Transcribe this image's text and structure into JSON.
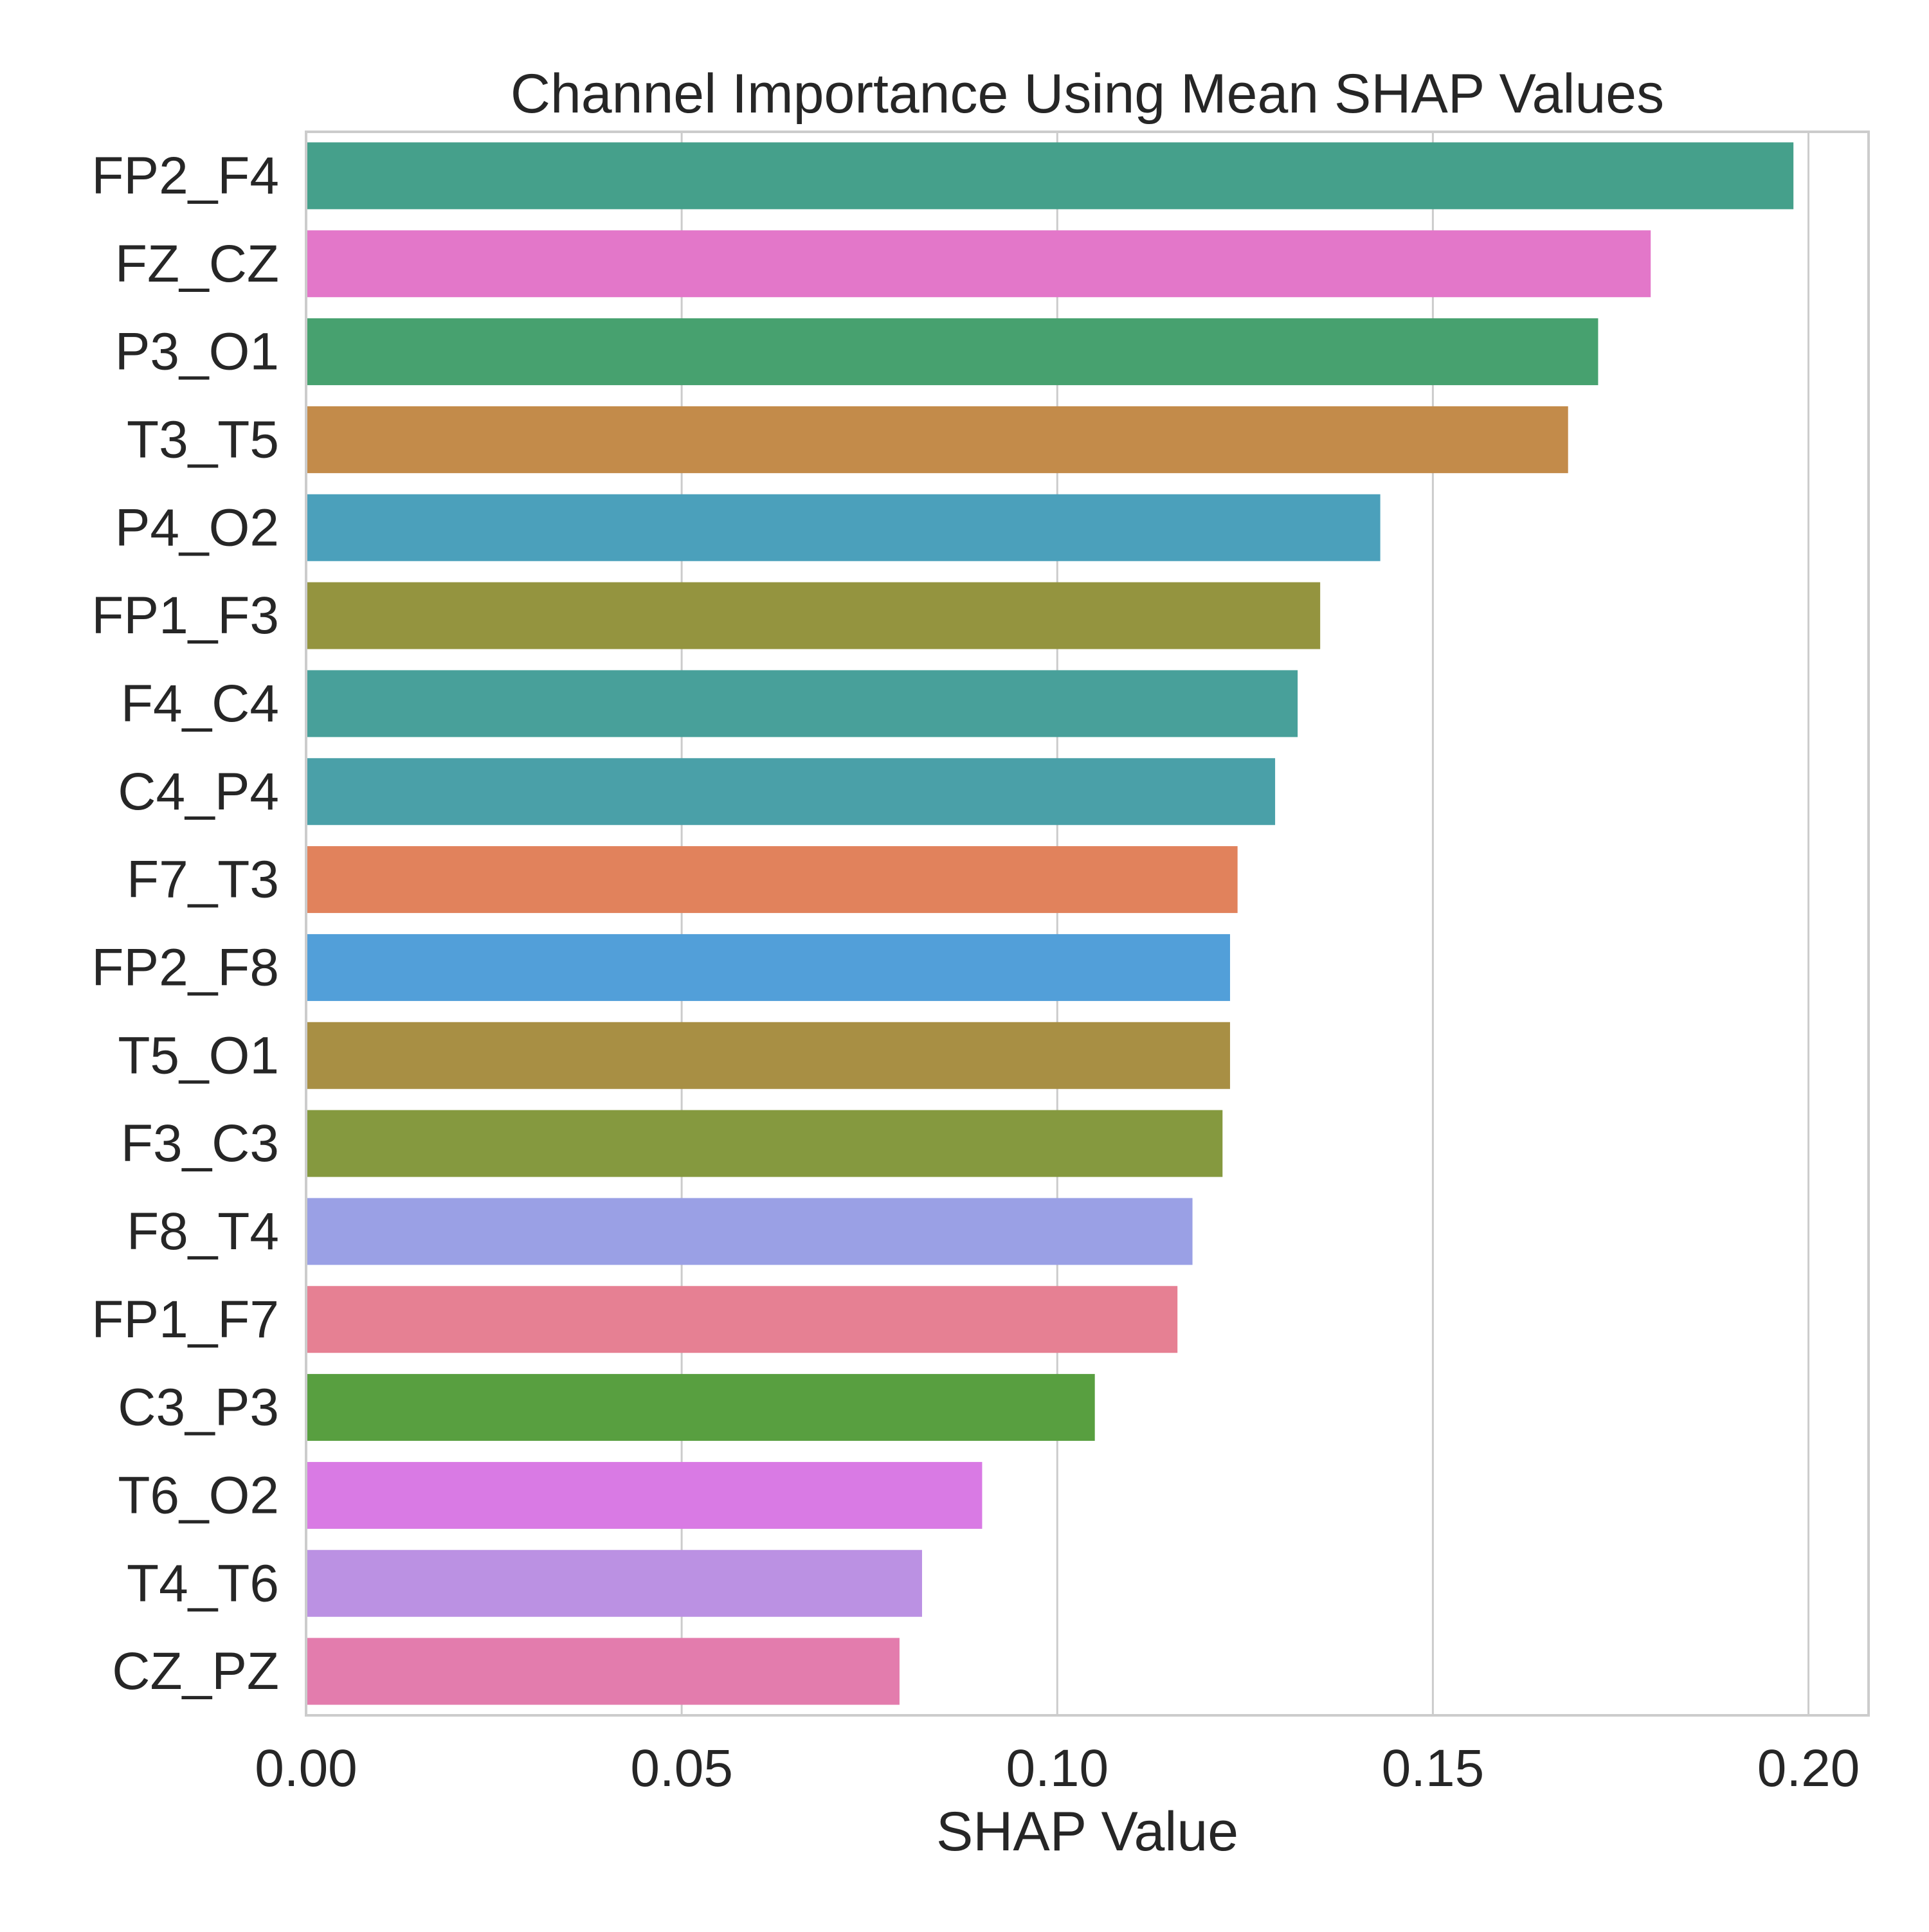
{
  "chart_data": {
    "type": "bar",
    "orientation": "horizontal",
    "title": "Channel Importance Using Mean SHAP Values",
    "xlabel": "SHAP Value",
    "ylabel": "",
    "xlim": [
      0,
      0.208
    ],
    "xticks": [
      0.0,
      0.05,
      0.1,
      0.15,
      0.2
    ],
    "xtick_labels": [
      "0.00",
      "0.05",
      "0.10",
      "0.15",
      "0.20"
    ],
    "grid": true,
    "categories": [
      "FP2_F4",
      "FZ_CZ",
      "P3_O1",
      "T3_T5",
      "P4_O2",
      "FP1_F3",
      "F4_C4",
      "C4_P4",
      "F7_T3",
      "FP2_F8",
      "T5_O1",
      "F3_C3",
      "F8_T4",
      "FP1_F7",
      "C3_P3",
      "T6_O2",
      "T4_T6",
      "CZ_PZ"
    ],
    "values": [
      0.198,
      0.179,
      0.172,
      0.168,
      0.143,
      0.135,
      0.132,
      0.129,
      0.124,
      0.123,
      0.123,
      0.122,
      0.118,
      0.116,
      0.105,
      0.09,
      0.082,
      0.079
    ],
    "colors": [
      "#45a08b",
      "#e377c9",
      "#47a16f",
      "#c38b4a",
      "#4ba0bb",
      "#94943f",
      "#48a09a",
      "#4aa0a8",
      "#e1825c",
      "#529fd9",
      "#a88f44",
      "#85993f",
      "#9aa0e5",
      "#e68093",
      "#589f40",
      "#d97ae4",
      "#bb91e3",
      "#e37cad"
    ]
  }
}
